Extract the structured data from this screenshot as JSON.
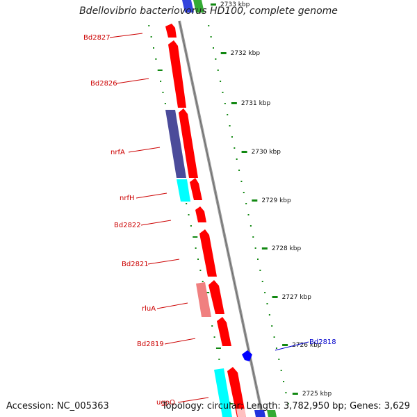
{
  "title": "Bdellovibrio bacteriovorus HD100, complete genome",
  "accession_label": "Accession: NC_005363",
  "summary_label": "Topology: circular; Length: 3,782,950 bp; Genes: 3,629",
  "colors": {
    "backbone": "#888888",
    "forward_gene": "#ff0000",
    "reverse_gene": "#ff0000",
    "light_gene": "#f08080",
    "cyan_gene": "#00ffff",
    "purple_gene": "#4b4b9a",
    "blue_gene": "#0000ff",
    "green_gene": "#22aa22",
    "gene_label": "#cc0000",
    "blue_label": "#0000cc",
    "tick": "#117711"
  },
  "scale_ticks": [
    "2733 kbp",
    "2732 kbp",
    "2731 kbp",
    "2730 kbp",
    "2729 kbp",
    "2728 kbp",
    "2727 kbp",
    "2726 kbp",
    "2725 kbp"
  ],
  "gene_labels": [
    {
      "text": "Bd2827",
      "color": "red"
    },
    {
      "text": "Bd2826",
      "color": "red"
    },
    {
      "text": "nrfA",
      "color": "red"
    },
    {
      "text": "nrfH",
      "color": "red"
    },
    {
      "text": "Bd2822",
      "color": "red"
    },
    {
      "text": "Bd2821",
      "color": "red"
    },
    {
      "text": "rluA",
      "color": "red"
    },
    {
      "text": "Bd2819",
      "color": "red"
    },
    {
      "text": "ugpQ",
      "color": "red"
    },
    {
      "text": "Bd2818",
      "color": "blue"
    }
  ]
}
